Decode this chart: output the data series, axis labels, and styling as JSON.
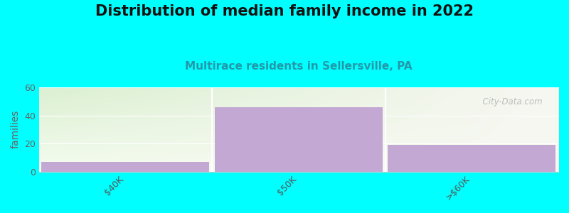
{
  "title": "Distribution of median family income in 2022",
  "subtitle": "Multirace residents in Sellersville, PA",
  "categories": [
    "$40K",
    "$50K",
    ">$60K"
  ],
  "values": [
    7,
    46,
    19
  ],
  "bar_color": "#c4a8d4",
  "ylim": [
    0,
    60
  ],
  "yticks": [
    0,
    20,
    40,
    60
  ],
  "ylabel": "families",
  "background_color": "#00ffff",
  "watermark": "  City-Data.com",
  "title_fontsize": 15,
  "subtitle_fontsize": 11,
  "tick_fontsize": 9,
  "ylabel_fontsize": 10
}
